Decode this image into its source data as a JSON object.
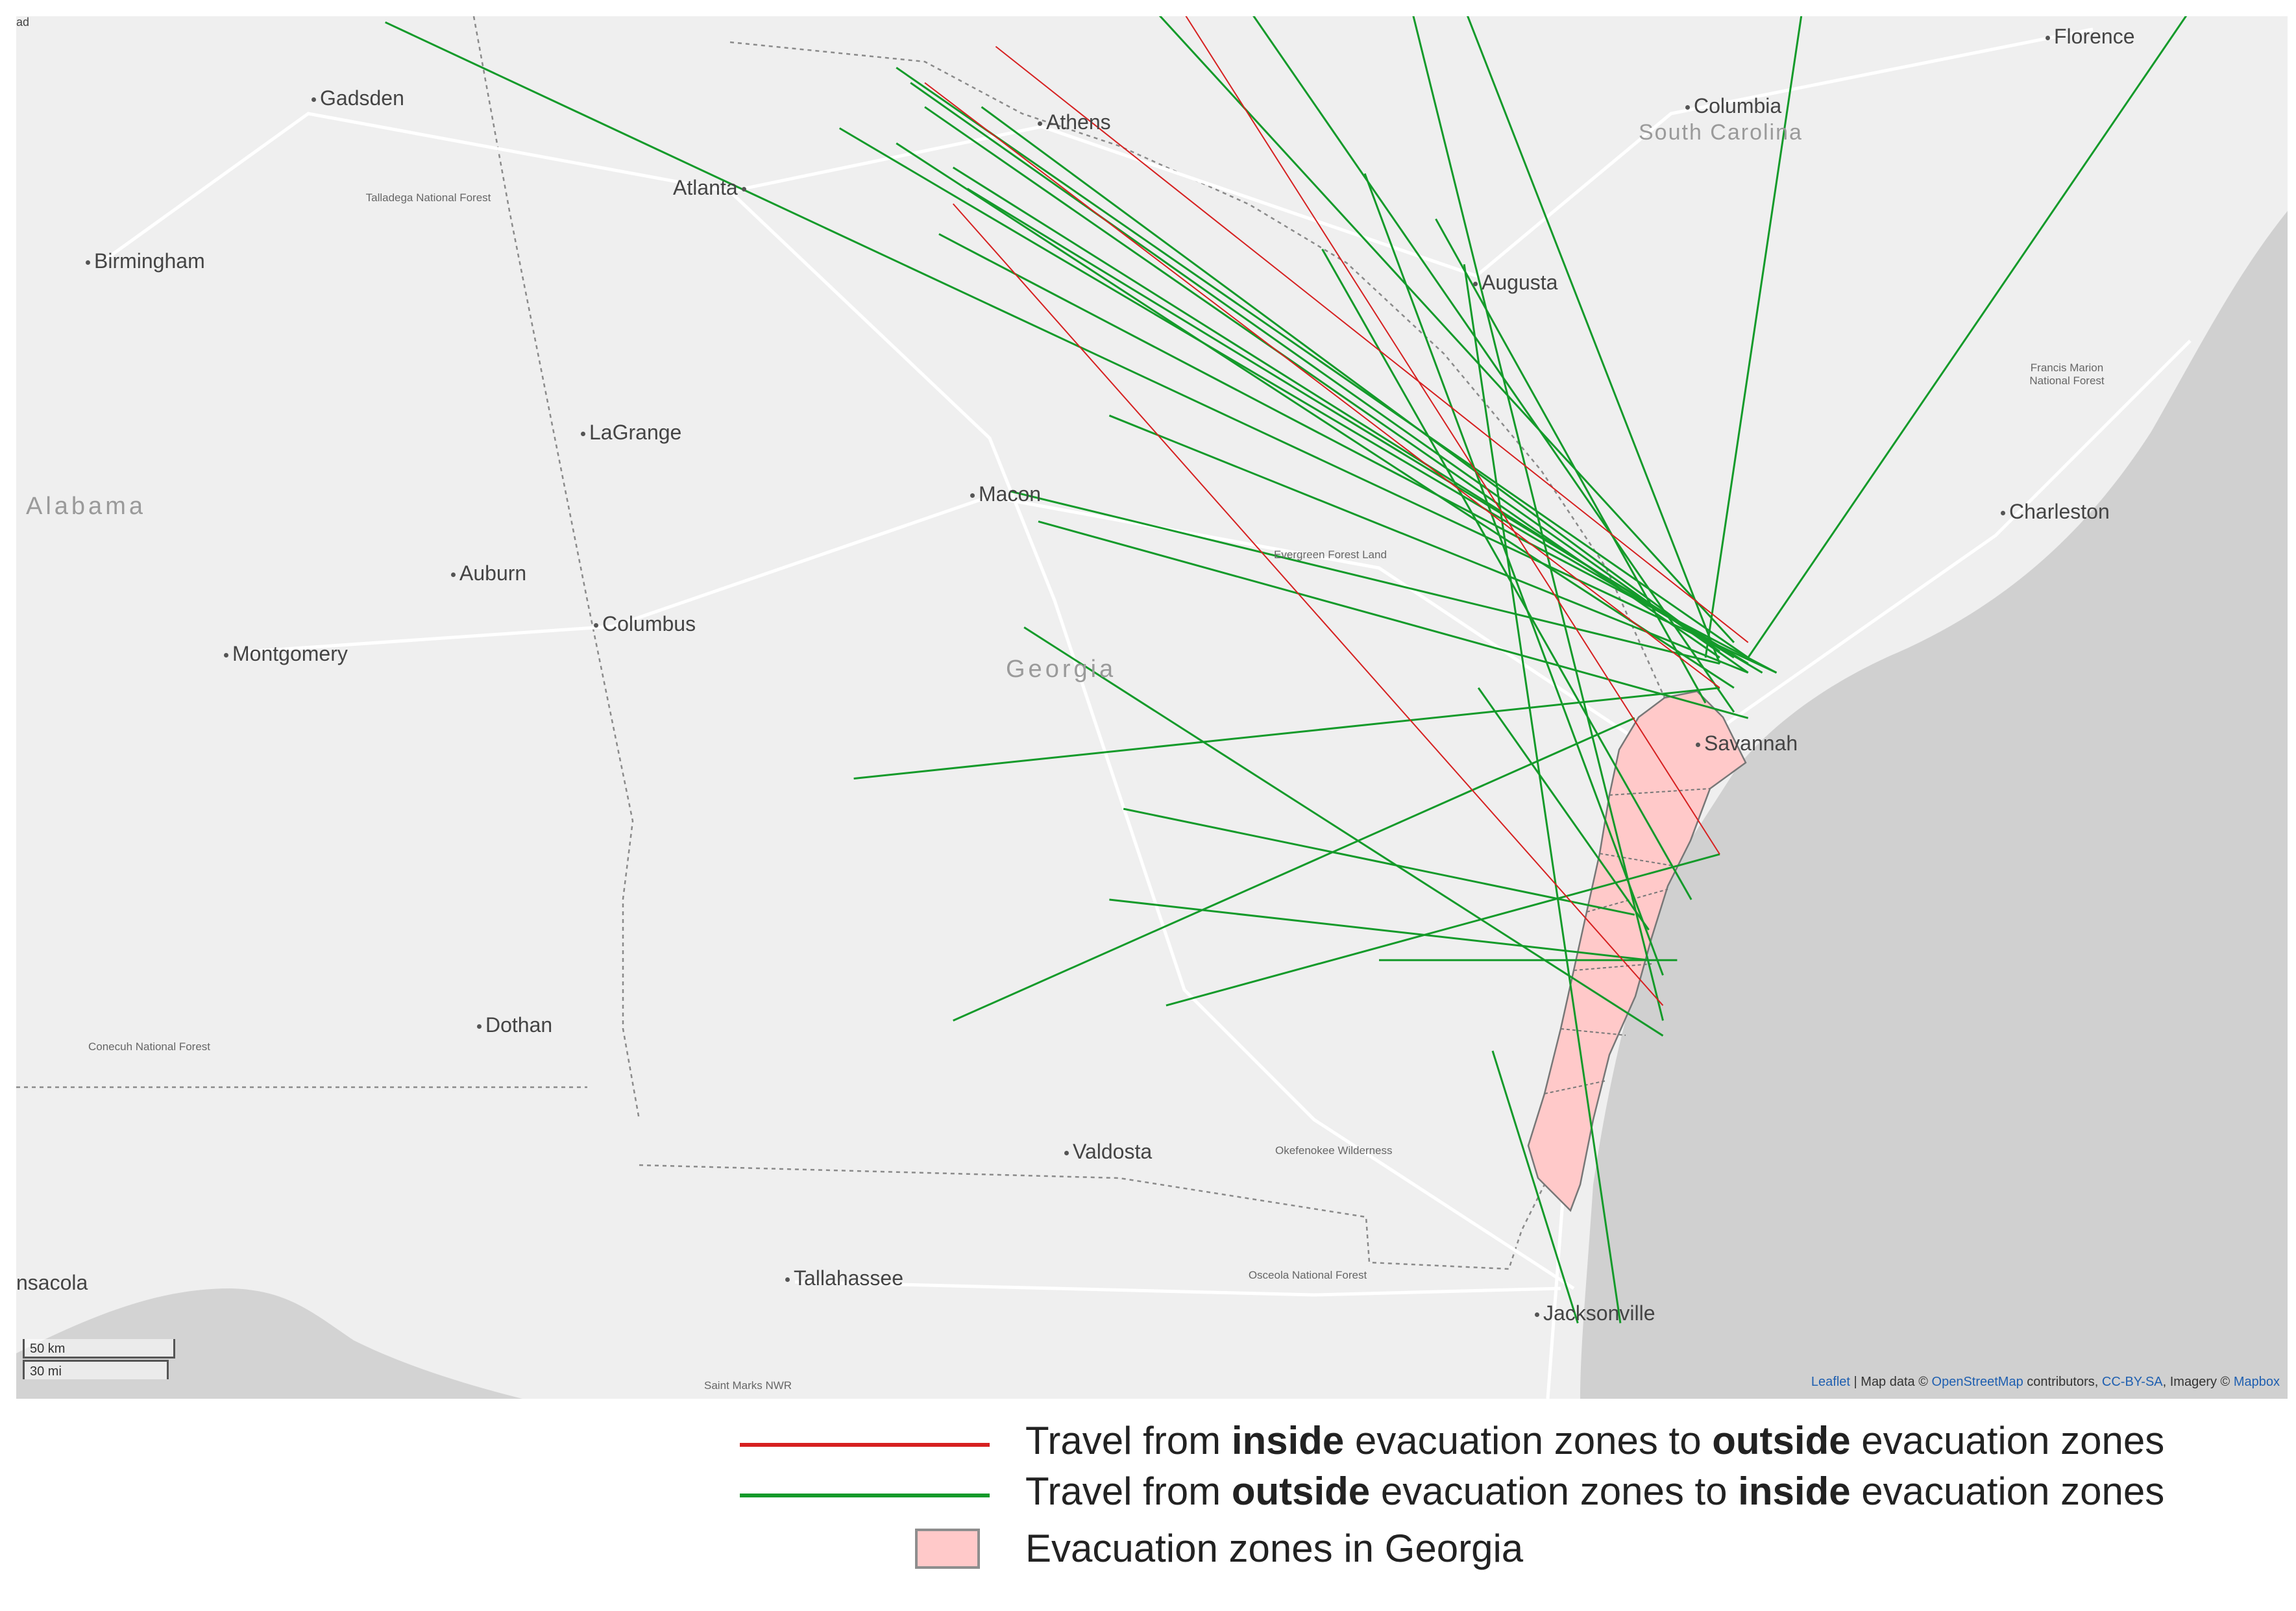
{
  "map": {
    "cities": [
      {
        "name": "Gadsden",
        "x": -85.0,
        "y": 34.0
      },
      {
        "name": "Birmingham",
        "x": -86.8,
        "y": 33.52
      },
      {
        "name": "Atlanta",
        "x": -84.39,
        "y": 33.75
      },
      {
        "name": "Athens",
        "x": -83.38,
        "y": 33.96
      },
      {
        "name": "Columbia",
        "x": -81.03,
        "y": 34.0
      },
      {
        "name": "Augusta",
        "x": -81.97,
        "y": 33.47
      },
      {
        "name": "LaGrange",
        "x": -85.03,
        "y": 33.04
      },
      {
        "name": "Macon",
        "x": -83.63,
        "y": 32.84
      },
      {
        "name": "Auburn",
        "x": -85.48,
        "y": 32.61
      },
      {
        "name": "Columbus",
        "x": -84.99,
        "y": 32.46
      },
      {
        "name": "Montgomery",
        "x": -86.3,
        "y": 32.37
      },
      {
        "name": "Savannah",
        "x": -81.1,
        "y": 32.08
      },
      {
        "name": "Charleston",
        "x": -79.93,
        "y": 32.78
      },
      {
        "name": "Florence",
        "x": -79.76,
        "y": 34.2
      },
      {
        "name": "Dothan",
        "x": -85.39,
        "y": 31.22
      },
      {
        "name": "Valdosta",
        "x": -83.28,
        "y": 30.83
      },
      {
        "name": "Tallahassee",
        "x": -84.28,
        "y": 30.44
      },
      {
        "name": "Jacksonville",
        "x": -81.66,
        "y": 30.33
      },
      {
        "name": "Pensacola",
        "x": -87.2,
        "y": 30.42
      }
    ],
    "city_labels": [
      {
        "text": "Gadsden"
      },
      {
        "text": "Birmingham"
      },
      {
        "text": "Atlanta"
      },
      {
        "text": "Athens"
      },
      {
        "text": "Columbia"
      },
      {
        "text": "Augusta"
      },
      {
        "text": "LaGrange"
      },
      {
        "text": "Macon"
      },
      {
        "text": "Auburn"
      },
      {
        "text": "Columbus"
      },
      {
        "text": "Montgomery"
      },
      {
        "text": "Savannah"
      },
      {
        "text": "Charleston"
      },
      {
        "text": "Florence"
      },
      {
        "text": "Dothan"
      },
      {
        "text": "Valdosta"
      },
      {
        "text": "Tallahassee"
      },
      {
        "text": "Jacksonville"
      },
      {
        "text": "nsacola"
      }
    ],
    "state_labels": [
      "Alabama",
      "Georgia",
      "South Carolina"
    ],
    "forest_labels": [
      "Talladega National Forest",
      "Conecuh National Forest",
      "Francis Marion National Forest",
      "Evergreen Forest Land",
      "Okefenokee Wilderness",
      "Osceola National Forest",
      "Saint Marks NWR"
    ],
    "corner_label": "ad",
    "inside_to_outside_trips": [
      {
        "from": [
          -81.2,
          32.15
        ],
        "to": [
          -83.85,
          34.12
        ]
      },
      {
        "from": [
          -81.3,
          31.45
        ],
        "to": [
          -83.2,
          34.25
        ]
      },
      {
        "from": [
          -81.5,
          30.95
        ],
        "to": [
          -84.0,
          33.6
        ]
      },
      {
        "from": [
          -81.3,
          32.0
        ],
        "to": [
          -84.1,
          34.0
        ]
      }
    ],
    "outside_to_inside_trips": [
      {
        "from": [
          -86.0,
          34.2
        ],
        "to": [
          -81.1,
          32.05
        ]
      },
      {
        "from": [
          -84.2,
          34.05
        ],
        "to": [
          -81.2,
          32.1
        ]
      },
      {
        "from": [
          -84.4,
          33.85
        ],
        "to": [
          -81.15,
          32.05
        ]
      },
      {
        "from": [
          -84.15,
          34.0
        ],
        "to": [
          -81.2,
          32.05
        ]
      },
      {
        "from": [
          -84.0,
          33.72
        ],
        "to": [
          -81.25,
          32.1
        ]
      },
      {
        "from": [
          -83.95,
          33.65
        ],
        "to": [
          -81.2,
          32.08
        ]
      },
      {
        "from": [
          -84.05,
          33.5
        ],
        "to": [
          -81.1,
          32.05
        ]
      },
      {
        "from": [
          -84.1,
          33.92
        ],
        "to": [
          -81.3,
          32.1
        ]
      },
      {
        "from": [
          -84.2,
          33.8
        ],
        "to": [
          -81.25,
          32.0
        ]
      },
      {
        "from": [
          -83.9,
          33.92
        ],
        "to": [
          -81.3,
          32.12
        ]
      },
      {
        "from": [
          -83.3,
          34.25
        ],
        "to": [
          -81.25,
          32.15
        ]
      },
      {
        "from": [
          -83.0,
          34.3
        ],
        "to": [
          -81.25,
          31.92
        ]
      },
      {
        "from": [
          -82.4,
          34.3
        ],
        "to": [
          -81.5,
          30.9
        ]
      },
      {
        "from": [
          -82.2,
          34.25
        ],
        "to": [
          -81.3,
          32.08
        ]
      },
      {
        "from": [
          -81.0,
          34.3
        ],
        "to": [
          -81.35,
          32.1
        ]
      },
      {
        "from": [
          -79.6,
          34.3
        ],
        "to": [
          -81.2,
          32.1
        ]
      },
      {
        "from": [
          -82.3,
          33.55
        ],
        "to": [
          -81.35,
          31.95
        ]
      },
      {
        "from": [
          -82.7,
          33.45
        ],
        "to": [
          -81.4,
          31.3
        ]
      },
      {
        "from": [
          -83.45,
          32.9
        ],
        "to": [
          -81.2,
          32.05
        ]
      },
      {
        "from": [
          -83.8,
          32.65
        ],
        "to": [
          -81.3,
          32.08
        ]
      },
      {
        "from": [
          -83.7,
          32.55
        ],
        "to": [
          -81.2,
          31.9
        ]
      },
      {
        "from": [
          -83.75,
          32.2
        ],
        "to": [
          -81.5,
          30.85
        ]
      },
      {
        "from": [
          -84.35,
          31.7
        ],
        "to": [
          -81.3,
          32.0
        ]
      },
      {
        "from": [
          -83.4,
          31.6
        ],
        "to": [
          -81.6,
          31.25
        ]
      },
      {
        "from": [
          -83.45,
          31.3
        ],
        "to": [
          -81.55,
          31.1
        ]
      },
      {
        "from": [
          -84.0,
          30.9
        ],
        "to": [
          -81.6,
          31.9
        ]
      },
      {
        "from": [
          -82.15,
          32.0
        ],
        "to": [
          -81.55,
          31.2
        ]
      },
      {
        "from": [
          -82.2,
          33.4
        ],
        "to": [
          -81.65,
          29.9
        ]
      },
      {
        "from": [
          -82.5,
          31.1
        ],
        "to": [
          -81.45,
          31.1
        ]
      },
      {
        "from": [
          -83.25,
          30.95
        ],
        "to": [
          -81.3,
          31.45
        ]
      },
      {
        "from": [
          -82.1,
          30.8
        ],
        "to": [
          -81.8,
          29.9
        ]
      },
      {
        "from": [
          -82.55,
          33.7
        ],
        "to": [
          -81.5,
          31.05
        ]
      }
    ]
  },
  "attribution": {
    "leaflet": "Leaflet",
    "sep": " | Map data © ",
    "osm": "OpenStreetMap",
    "mid": " contributors, ",
    "cc": "CC-BY-SA",
    "imagery": ", Imagery © ",
    "mapbox": "Mapbox"
  },
  "scale": {
    "km": "50 km",
    "mi": "30 mi"
  },
  "legend": {
    "red_color": "#d62020",
    "green_color": "#149a2a",
    "zone_fill": "#ffc9c9",
    "row1": {
      "prefix": "Travel from ",
      "bold1": "inside",
      "mid": " evacuation zones to ",
      "bold2": "outside",
      "suffix": " evacuation zones"
    },
    "row2": {
      "prefix": "Travel from ",
      "bold1": "outside",
      "mid": " evacuation zones to ",
      "bold2": "inside",
      "suffix": " evacuation zones"
    },
    "row3": {
      "label": "Evacuation zones in Georgia"
    }
  }
}
